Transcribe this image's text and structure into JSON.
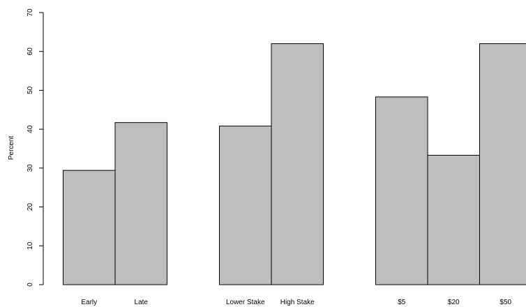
{
  "chart_data": {
    "type": "bar",
    "ylabel": "Percent",
    "xlabel": "",
    "title": "",
    "ylim": [
      0,
      70
    ],
    "yticks": [
      "0",
      "10",
      "20",
      "30",
      "40",
      "50",
      "60",
      "70"
    ],
    "grid": false,
    "bar_color": "#bebebe",
    "bar_border": "#000000",
    "groups": [
      {
        "categories": [
          "Early",
          "Late"
        ],
        "values": [
          29.4,
          41.7
        ]
      },
      {
        "categories": [
          "Lower Stake",
          "High Stake"
        ],
        "values": [
          40.8,
          62.0
        ]
      },
      {
        "categories": [
          "$5",
          "$20",
          "$50"
        ],
        "values": [
          48.3,
          33.3,
          62.0
        ]
      }
    ]
  }
}
